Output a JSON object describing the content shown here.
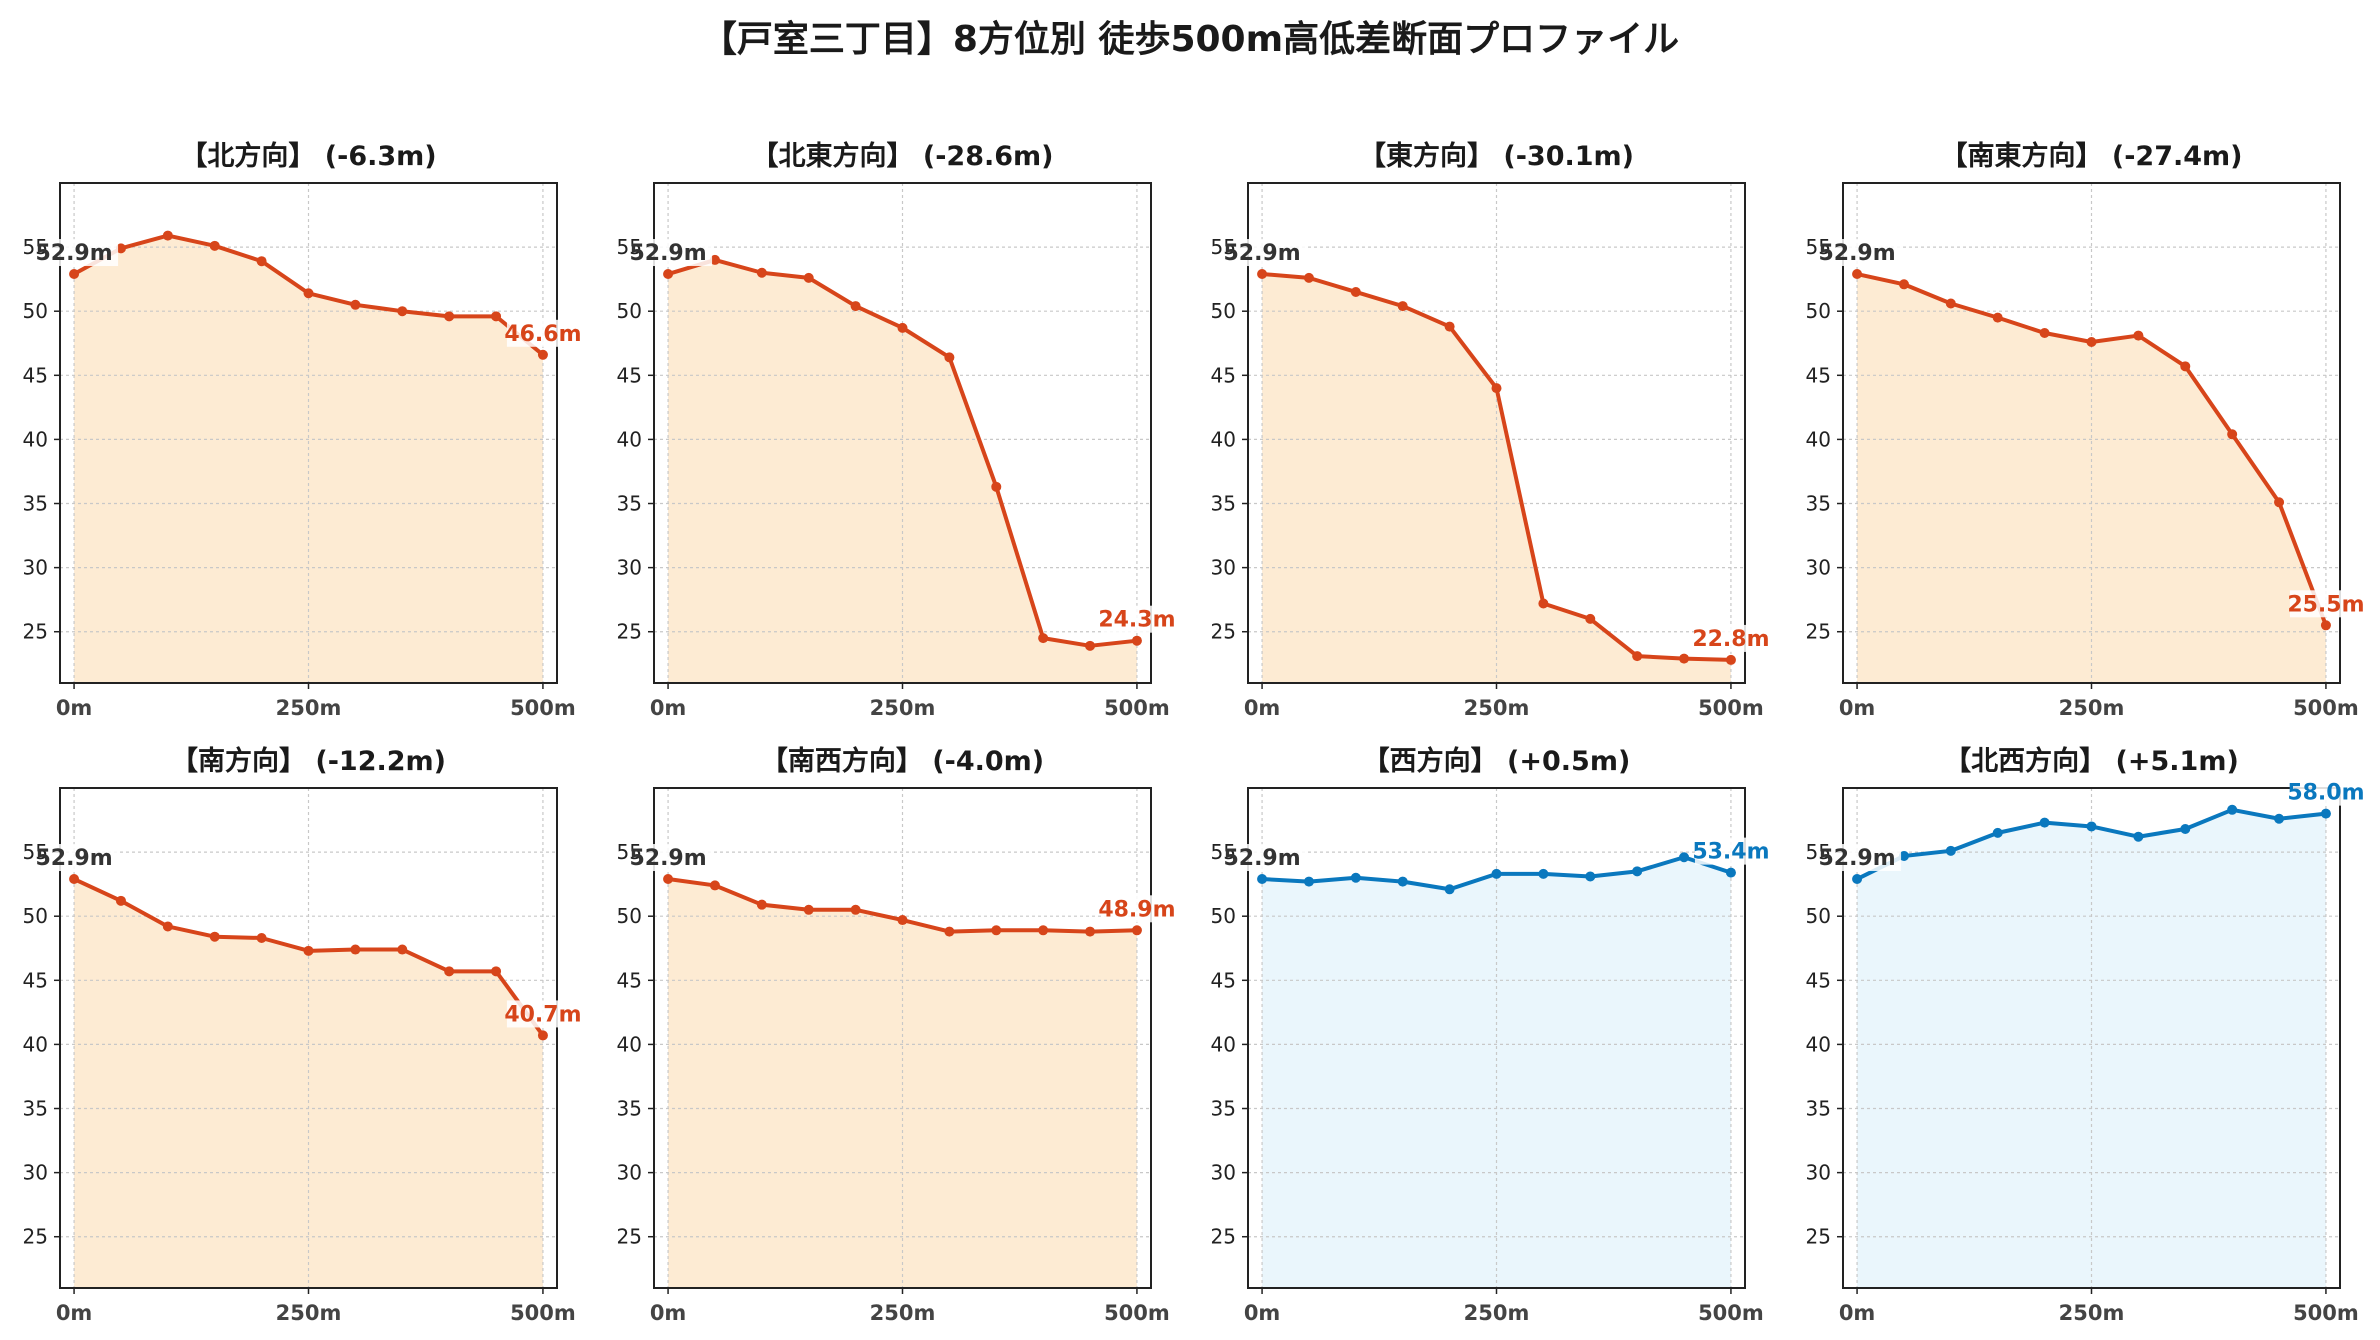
{
  "title": "【戸室三丁目】8方位別 徒歩500m高低差断面プロファイル",
  "colors": {
    "down": "#d7451a",
    "down_fill": "#fdebd3",
    "up": "#0a78be",
    "up_fill": "#eaf6fc",
    "start_label": "#333333"
  },
  "chart_data": [
    {
      "type": "area",
      "title": "【北方向】 (-6.3m)",
      "start_label": "52.9m",
      "end_label": "46.6m",
      "x": [
        0,
        50,
        100,
        150,
        200,
        250,
        300,
        350,
        400,
        450,
        500
      ],
      "values": [
        52.9,
        54.9,
        55.9,
        55.1,
        53.9,
        51.4,
        50.5,
        50.0,
        49.6,
        49.6,
        46.6
      ],
      "xticks": [
        "0m",
        "250m",
        "500m"
      ],
      "yticks": [
        25,
        30,
        35,
        40,
        45,
        50,
        55
      ],
      "ylim": [
        21,
        60
      ],
      "grid": true
    },
    {
      "type": "area",
      "title": "【北東方向】 (-28.6m)",
      "start_label": "52.9m",
      "end_label": "24.3m",
      "x": [
        0,
        50,
        100,
        150,
        200,
        250,
        300,
        350,
        400,
        450,
        500
      ],
      "values": [
        52.9,
        54.0,
        53.0,
        52.6,
        50.4,
        48.7,
        46.4,
        36.3,
        24.5,
        23.9,
        24.3
      ],
      "xticks": [
        "0m",
        "250m",
        "500m"
      ],
      "yticks": [
        25,
        30,
        35,
        40,
        45,
        50,
        55
      ],
      "ylim": [
        21,
        60
      ],
      "grid": true
    },
    {
      "type": "area",
      "title": "【東方向】 (-30.1m)",
      "start_label": "52.9m",
      "end_label": "22.8m",
      "x": [
        0,
        50,
        100,
        150,
        200,
        250,
        300,
        350,
        400,
        450,
        500
      ],
      "values": [
        52.9,
        52.6,
        51.5,
        50.4,
        48.8,
        44.0,
        27.2,
        26.0,
        23.1,
        22.9,
        22.8
      ],
      "xticks": [
        "0m",
        "250m",
        "500m"
      ],
      "yticks": [
        25,
        30,
        35,
        40,
        45,
        50,
        55
      ],
      "ylim": [
        21,
        60
      ],
      "grid": true
    },
    {
      "type": "area",
      "title": "【南東方向】 (-27.4m)",
      "start_label": "52.9m",
      "end_label": "25.5m",
      "x": [
        0,
        50,
        100,
        150,
        200,
        250,
        300,
        350,
        400,
        450,
        500
      ],
      "values": [
        52.9,
        52.1,
        50.6,
        49.5,
        48.3,
        47.6,
        48.1,
        45.7,
        40.4,
        35.1,
        25.5
      ],
      "xticks": [
        "0m",
        "250m",
        "500m"
      ],
      "yticks": [
        25,
        30,
        35,
        40,
        45,
        50,
        55
      ],
      "ylim": [
        21,
        60
      ],
      "grid": true
    },
    {
      "type": "area",
      "title": "【南方向】 (-12.2m)",
      "start_label": "52.9m",
      "end_label": "40.7m",
      "x": [
        0,
        50,
        100,
        150,
        200,
        250,
        300,
        350,
        400,
        450,
        500
      ],
      "values": [
        52.9,
        51.2,
        49.2,
        48.4,
        48.3,
        47.3,
        47.4,
        47.4,
        45.7,
        45.7,
        40.7
      ],
      "xticks": [
        "0m",
        "250m",
        "500m"
      ],
      "yticks": [
        25,
        30,
        35,
        40,
        45,
        50,
        55
      ],
      "ylim": [
        21,
        60
      ],
      "grid": true
    },
    {
      "type": "area",
      "title": "【南西方向】 (-4.0m)",
      "start_label": "52.9m",
      "end_label": "48.9m",
      "x": [
        0,
        50,
        100,
        150,
        200,
        250,
        300,
        350,
        400,
        450,
        500
      ],
      "values": [
        52.9,
        52.4,
        50.9,
        50.5,
        50.5,
        49.7,
        48.8,
        48.9,
        48.9,
        48.8,
        48.9
      ],
      "xticks": [
        "0m",
        "250m",
        "500m"
      ],
      "yticks": [
        25,
        30,
        35,
        40,
        45,
        50,
        55
      ],
      "ylim": [
        21,
        60
      ],
      "grid": true
    },
    {
      "type": "area",
      "title": "【西方向】 (+0.5m)",
      "start_label": "52.9m",
      "end_label": "53.4m",
      "x": [
        0,
        50,
        100,
        150,
        200,
        250,
        300,
        350,
        400,
        450,
        500
      ],
      "values": [
        52.9,
        52.7,
        53.0,
        52.7,
        52.1,
        53.3,
        53.3,
        53.1,
        53.5,
        54.6,
        53.4
      ],
      "xticks": [
        "0m",
        "250m",
        "500m"
      ],
      "yticks": [
        25,
        30,
        35,
        40,
        45,
        50,
        55
      ],
      "ylim": [
        21,
        60
      ],
      "grid": true
    },
    {
      "type": "area",
      "title": "【北西方向】 (+5.1m)",
      "start_label": "52.9m",
      "end_label": "58.0m",
      "x": [
        0,
        50,
        100,
        150,
        200,
        250,
        300,
        350,
        400,
        450,
        500
      ],
      "values": [
        52.9,
        54.7,
        55.1,
        56.5,
        57.3,
        57.0,
        56.2,
        56.8,
        58.3,
        57.6,
        58.0
      ],
      "xticks": [
        "0m",
        "250m",
        "500m"
      ],
      "yticks": [
        25,
        30,
        35,
        40,
        45,
        50,
        55
      ],
      "ylim": [
        21,
        60
      ],
      "grid": true
    }
  ]
}
